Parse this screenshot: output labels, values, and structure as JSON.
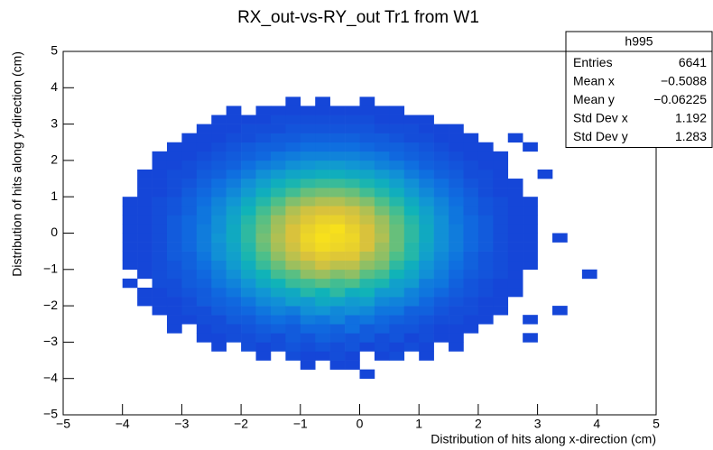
{
  "chart_data": {
    "type": "heatmap2d",
    "title": "RX_out-vs-RY_out Tr1 from W1",
    "xlabel": "Distribution of hits along x-direction (cm)",
    "ylabel": "Distribution of hits along y-direction (cm)",
    "xlim": [
      -5,
      5
    ],
    "ylim": [
      -5,
      5
    ],
    "xticks": [
      {
        "value": -5,
        "label": "−5"
      },
      {
        "value": -4,
        "label": "−4"
      },
      {
        "value": -3,
        "label": "−3"
      },
      {
        "value": -2,
        "label": "−2"
      },
      {
        "value": -1,
        "label": "−1"
      },
      0,
      1,
      2,
      3,
      4,
      5
    ],
    "yticks": [
      {
        "value": -5,
        "label": "−5"
      },
      {
        "value": -4,
        "label": "−4"
      },
      {
        "value": -3,
        "label": "−3"
      },
      {
        "value": -2,
        "label": "−2"
      },
      {
        "value": -1,
        "label": "−1"
      },
      0,
      1,
      2,
      3,
      4,
      5
    ],
    "colorscale": [
      "#1546d8",
      "#0f6fe0",
      "#1196d4",
      "#10b3b8",
      "#4cbf8a",
      "#9cbf5e",
      "#d9c23c",
      "#f7e01c"
    ],
    "stats": {
      "title": "h995",
      "rows": [
        [
          "Entries",
          "6641"
        ],
        [
          "Mean x",
          "−0.5088"
        ],
        [
          "Mean y",
          "−0.06225"
        ],
        [
          "Std Dev x",
          "1.192"
        ],
        [
          "Std Dev y",
          "1.283"
        ]
      ]
    },
    "xbins": [
      -4,
      -3.75,
      -3.5,
      -3.25,
      -3,
      -2.75,
      -2.5,
      -2.25,
      -2,
      -1.75,
      -1.5,
      -1.25,
      -1,
      -0.75,
      -0.5,
      -0.25,
      0,
      0.25,
      0.5,
      0.75,
      1,
      1.25,
      1.5,
      1.75,
      2,
      2.25,
      2.5,
      2.75,
      3,
      3.25,
      3.5,
      3.75,
      4
    ],
    "ybins": [
      -4,
      -3.75,
      -3.5,
      -3.25,
      -3,
      -2.75,
      -2.5,
      -2.25,
      -2,
      -1.75,
      -1.5,
      -1.25,
      -1,
      -0.75,
      -0.5,
      -0.25,
      0,
      0.25,
      0.5,
      0.75,
      1,
      1.25,
      1.5,
      1.75,
      2,
      2.25,
      2.5,
      2.75,
      3,
      3.25,
      3.5,
      3.75,
      4
    ],
    "z": [
      [
        0,
        0,
        0,
        0,
        0,
        0,
        0,
        0,
        0,
        0,
        0,
        0,
        0,
        0,
        0,
        0,
        1,
        0,
        0,
        0,
        0,
        0,
        0,
        0,
        0,
        0,
        0,
        0,
        0,
        0,
        0,
        0
      ],
      [
        0,
        0,
        0,
        0,
        0,
        0,
        0,
        0,
        0,
        0,
        0,
        0,
        1,
        0,
        1,
        1,
        0,
        0,
        0,
        0,
        0,
        0,
        0,
        0,
        0,
        0,
        0,
        0,
        0,
        0,
        0,
        0
      ],
      [
        0,
        0,
        0,
        0,
        0,
        0,
        0,
        0,
        0,
        1,
        0,
        2,
        1,
        1,
        2,
        1,
        0,
        1,
        2,
        0,
        1,
        0,
        0,
        0,
        0,
        0,
        0,
        0,
        0,
        0,
        0,
        0
      ],
      [
        0,
        0,
        0,
        0,
        0,
        0,
        1,
        0,
        2,
        1,
        2,
        3,
        2,
        3,
        2,
        3,
        1,
        2,
        1,
        2,
        1,
        0,
        1,
        0,
        0,
        0,
        0,
        0,
        0,
        0,
        0,
        0
      ],
      [
        0,
        0,
        0,
        0,
        0,
        1,
        1,
        2,
        2,
        3,
        2,
        4,
        3,
        5,
        4,
        3,
        4,
        2,
        3,
        1,
        2,
        1,
        1,
        0,
        0,
        0,
        0,
        1,
        0,
        0,
        0,
        0
      ],
      [
        0,
        0,
        0,
        1,
        0,
        1,
        2,
        2,
        3,
        4,
        5,
        4,
        6,
        6,
        5,
        7,
        4,
        5,
        3,
        3,
        2,
        1,
        1,
        1,
        0,
        0,
        0,
        0,
        0,
        0,
        0,
        0
      ],
      [
        0,
        0,
        0,
        1,
        1,
        2,
        2,
        4,
        4,
        6,
        7,
        6,
        9,
        8,
        10,
        7,
        8,
        6,
        5,
        4,
        3,
        2,
        2,
        1,
        1,
        0,
        0,
        1,
        0,
        0,
        0,
        0
      ],
      [
        0,
        0,
        1,
        1,
        2,
        2,
        4,
        5,
        6,
        8,
        10,
        9,
        12,
        13,
        11,
        12,
        11,
        8,
        8,
        5,
        5,
        3,
        2,
        2,
        1,
        1,
        0,
        0,
        0,
        1,
        0,
        0
      ],
      [
        0,
        1,
        1,
        1,
        2,
        4,
        5,
        6,
        8,
        11,
        12,
        15,
        14,
        17,
        16,
        14,
        15,
        11,
        10,
        9,
        6,
        4,
        3,
        2,
        1,
        1,
        0,
        0,
        0,
        0,
        0,
        0
      ],
      [
        0,
        1,
        1,
        2,
        3,
        4,
        6,
        8,
        11,
        13,
        16,
        17,
        21,
        19,
        22,
        18,
        19,
        14,
        14,
        10,
        8,
        6,
        4,
        3,
        2,
        1,
        1,
        0,
        0,
        0,
        0,
        0
      ],
      [
        1,
        0,
        2,
        2,
        4,
        5,
        8,
        10,
        13,
        17,
        19,
        23,
        24,
        26,
        24,
        25,
        21,
        20,
        15,
        14,
        9,
        8,
        5,
        3,
        2,
        1,
        1,
        0,
        0,
        0,
        0,
        0
      ],
      [
        0,
        1,
        2,
        3,
        4,
        6,
        9,
        12,
        16,
        19,
        24,
        26,
        30,
        31,
        29,
        30,
        26,
        24,
        19,
        16,
        12,
        9,
        6,
        4,
        3,
        2,
        1,
        0,
        0,
        0,
        0,
        1
      ],
      [
        1,
        1,
        2,
        3,
        5,
        7,
        10,
        14,
        18,
        23,
        27,
        31,
        33,
        36,
        34,
        34,
        30,
        28,
        22,
        18,
        13,
        10,
        7,
        5,
        3,
        2,
        1,
        1,
        0,
        0,
        0,
        0
      ],
      [
        1,
        1,
        2,
        4,
        5,
        8,
        12,
        15,
        20,
        25,
        30,
        34,
        37,
        39,
        38,
        38,
        33,
        30,
        25,
        21,
        15,
        11,
        8,
        5,
        3,
        2,
        1,
        1,
        0,
        0,
        0,
        0
      ],
      [
        1,
        1,
        2,
        4,
        6,
        9,
        12,
        16,
        21,
        27,
        32,
        36,
        40,
        42,
        41,
        40,
        37,
        31,
        27,
        21,
        16,
        12,
        9,
        6,
        4,
        2,
        1,
        1,
        0,
        0,
        0,
        0
      ],
      [
        1,
        1,
        2,
        4,
        6,
        9,
        13,
        17,
        22,
        28,
        33,
        37,
        41,
        43,
        42,
        41,
        37,
        33,
        27,
        22,
        17,
        12,
        9,
        6,
        4,
        2,
        1,
        1,
        0,
        1,
        0,
        0
      ],
      [
        1,
        1,
        2,
        4,
        6,
        9,
        12,
        17,
        22,
        27,
        32,
        37,
        40,
        42,
        43,
        40,
        37,
        32,
        27,
        22,
        17,
        12,
        9,
        6,
        4,
        2,
        1,
        1,
        0,
        0,
        0,
        0
      ],
      [
        1,
        1,
        2,
        4,
        6,
        8,
        12,
        16,
        21,
        26,
        31,
        35,
        38,
        40,
        40,
        38,
        35,
        31,
        26,
        21,
        16,
        12,
        8,
        6,
        4,
        2,
        1,
        1,
        0,
        0,
        0,
        0
      ],
      [
        1,
        1,
        2,
        3,
        5,
        8,
        11,
        15,
        19,
        24,
        28,
        33,
        36,
        37,
        37,
        36,
        33,
        28,
        24,
        19,
        15,
        11,
        8,
        5,
        3,
        2,
        1,
        1,
        0,
        0,
        0,
        0
      ],
      [
        1,
        1,
        2,
        3,
        5,
        7,
        10,
        13,
        17,
        21,
        25,
        29,
        31,
        33,
        33,
        31,
        29,
        25,
        21,
        17,
        13,
        10,
        7,
        5,
        3,
        2,
        1,
        1,
        0,
        0,
        0,
        0
      ],
      [
        0,
        1,
        1,
        2,
        4,
        6,
        8,
        11,
        14,
        18,
        21,
        24,
        27,
        28,
        28,
        27,
        24,
        21,
        18,
        14,
        11,
        8,
        6,
        4,
        2,
        1,
        1,
        0,
        0,
        0,
        0,
        0
      ],
      [
        0,
        1,
        1,
        2,
        3,
        5,
        7,
        9,
        12,
        15,
        18,
        20,
        22,
        23,
        23,
        22,
        20,
        18,
        15,
        12,
        9,
        7,
        5,
        3,
        2,
        1,
        1,
        0,
        0,
        0,
        0,
        0
      ],
      [
        0,
        1,
        1,
        2,
        2,
        4,
        5,
        7,
        9,
        12,
        14,
        16,
        17,
        18,
        18,
        17,
        16,
        14,
        12,
        9,
        7,
        5,
        4,
        2,
        2,
        1,
        0,
        0,
        1,
        0,
        0,
        0
      ],
      [
        0,
        0,
        1,
        1,
        2,
        3,
        4,
        5,
        7,
        9,
        10,
        12,
        13,
        14,
        14,
        13,
        12,
        10,
        9,
        7,
        5,
        4,
        3,
        2,
        1,
        1,
        0,
        0,
        0,
        0,
        0,
        0
      ],
      [
        0,
        0,
        1,
        1,
        1,
        2,
        3,
        4,
        5,
        6,
        8,
        9,
        10,
        10,
        10,
        10,
        9,
        8,
        6,
        5,
        4,
        3,
        2,
        1,
        1,
        1,
        0,
        0,
        0,
        0,
        0,
        0
      ],
      [
        0,
        0,
        0,
        1,
        1,
        1,
        2,
        3,
        4,
        5,
        5,
        6,
        7,
        7,
        7,
        7,
        6,
        5,
        5,
        4,
        3,
        2,
        1,
        1,
        1,
        0,
        0,
        1,
        0,
        0,
        0,
        0
      ],
      [
        0,
        0,
        0,
        0,
        1,
        1,
        1,
        2,
        2,
        3,
        4,
        4,
        5,
        5,
        5,
        5,
        4,
        4,
        3,
        2,
        2,
        1,
        1,
        1,
        0,
        0,
        1,
        0,
        0,
        0,
        0,
        0
      ],
      [
        0,
        0,
        0,
        0,
        0,
        1,
        1,
        1,
        2,
        2,
        2,
        3,
        3,
        3,
        3,
        3,
        3,
        2,
        2,
        2,
        1,
        1,
        1,
        0,
        0,
        0,
        0,
        0,
        0,
        0,
        0,
        0
      ],
      [
        0,
        0,
        0,
        0,
        0,
        0,
        1,
        1,
        1,
        1,
        2,
        2,
        2,
        2,
        2,
        2,
        2,
        1,
        1,
        1,
        1,
        0,
        0,
        0,
        0,
        0,
        0,
        0,
        0,
        0,
        0,
        0
      ],
      [
        0,
        0,
        0,
        0,
        0,
        0,
        0,
        1,
        0,
        1,
        1,
        1,
        1,
        1,
        1,
        1,
        1,
        1,
        1,
        0,
        0,
        0,
        0,
        0,
        0,
        0,
        0,
        0,
        0,
        0,
        0,
        0
      ],
      [
        0,
        0,
        0,
        0,
        0,
        0,
        0,
        0,
        0,
        0,
        0,
        1,
        0,
        1,
        0,
        0,
        1,
        0,
        0,
        0,
        0,
        0,
        0,
        0,
        0,
        0,
        0,
        0,
        0,
        0,
        0,
        0
      ],
      [
        0,
        0,
        0,
        0,
        0,
        0,
        0,
        0,
        0,
        0,
        0,
        0,
        0,
        0,
        0,
        0,
        0,
        0,
        0,
        0,
        0,
        0,
        0,
        0,
        0,
        0,
        0,
        0,
        0,
        0,
        0,
        0
      ]
    ]
  }
}
